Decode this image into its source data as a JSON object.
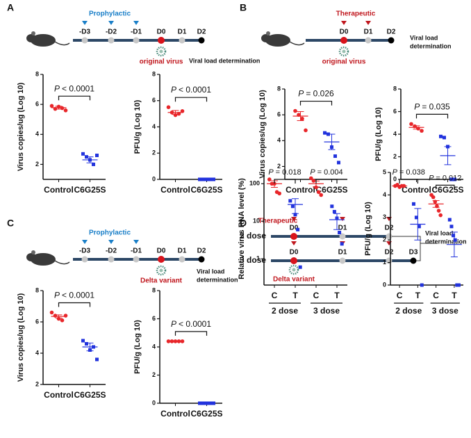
{
  "panel_labels": [
    "A",
    "B",
    "C",
    "D"
  ],
  "p_symbol": "P",
  "timelines": [
    {
      "phase": "Prophylactic",
      "days": [
        "-D3",
        "-D2",
        "-D1",
        "D0",
        "D1",
        "D2"
      ],
      "virus": "original virus",
      "readout": [
        "Viral load determination"
      ]
    },
    {
      "phase": "Therapeutic",
      "days": [
        "D0",
        "D1",
        "D2"
      ],
      "virus": "original virus",
      "readout": [
        "Viral load",
        "determination"
      ]
    },
    {
      "phase": "Prophylactic",
      "days": [
        "-D3",
        "-D2",
        "-D1",
        "D0",
        "D1",
        "D2"
      ],
      "virus": "Delta variant",
      "readout": [
        "Viral load",
        "determination"
      ]
    },
    {
      "phase": "Therapeutic",
      "rows": [
        {
          "name": "2 dose",
          "days": [
            "D0",
            "D1",
            "D2"
          ]
        },
        {
          "name": "3 dose",
          "days": [
            "D0",
            "D1",
            "D2",
            "D3"
          ]
        }
      ],
      "virus": "Delta variant",
      "readout": [
        "Viral load",
        "determination"
      ]
    }
  ],
  "chart_data": [
    {
      "type": "dot",
      "ylabel": "Virus copies/ug (Log 10)",
      "categories": [
        "Control",
        "C6G25S"
      ],
      "colors": [
        "#e8262a",
        "#2233dd"
      ],
      "markers": [
        "circle",
        "square"
      ],
      "points": [
        [
          5.9,
          5.7,
          5.85,
          5.75,
          5.6
        ],
        [
          2.7,
          2.5,
          2.3,
          2.0,
          2.6
        ]
      ],
      "means": [
        5.78,
        2.3
      ],
      "errors": [
        0.1,
        0.2
      ],
      "ylim": [
        1,
        8
      ],
      "yticks": [
        2,
        4,
        6,
        8
      ],
      "comparisons": [
        {
          "pair": [
            0,
            1
          ],
          "text": "< 0.0001"
        }
      ]
    },
    {
      "type": "dot",
      "ylabel": "PFU/g (Log 10)",
      "categories": [
        "Control",
        "C6G25S"
      ],
      "colors": [
        "#e8262a",
        "#2233dd"
      ],
      "markers": [
        "circle",
        "square"
      ],
      "points": [
        [
          5.5,
          5.1,
          4.9,
          5.0,
          5.2
        ],
        [
          0,
          0,
          0,
          0,
          0
        ]
      ],
      "means": [
        5.1,
        0
      ],
      "errors": [
        0.15,
        0
      ],
      "ylim": [
        0,
        8
      ],
      "yticks": [
        0,
        2,
        4,
        6,
        8
      ],
      "comparisons": [
        {
          "pair": [
            0,
            1
          ],
          "text": "< 0.0001"
        }
      ]
    },
    {
      "type": "dot",
      "ylabel": "Virus copies/ug (Log 10)",
      "categories": [
        "Control",
        "C6G25S"
      ],
      "colors": [
        "#e8262a",
        "#2233dd"
      ],
      "markers": [
        "circle",
        "square"
      ],
      "points": [
        [
          6.3,
          6.0,
          5.7,
          4.8
        ],
        [
          4.6,
          4.5,
          3.5,
          2.8,
          2.3
        ]
      ],
      "means": [
        5.9,
        3.9
      ],
      "errors": [
        0.35,
        0.6
      ],
      "ylim": [
        1,
        8
      ],
      "yticks": [
        2,
        4,
        6,
        8
      ],
      "comparisons": [
        {
          "pair": [
            0,
            1
          ],
          "text": "= 0.026"
        }
      ]
    },
    {
      "type": "dot",
      "ylabel": "PFU/g (Log 10)",
      "categories": [
        "Control",
        "C6G25S"
      ],
      "colors": [
        "#e8262a",
        "#2233dd"
      ],
      "markers": [
        "circle",
        "square"
      ],
      "points": [
        [
          4.9,
          4.7,
          4.5,
          4.3
        ],
        [
          3.8,
          3.7,
          2.9,
          0,
          0
        ]
      ],
      "means": [
        4.6,
        2.1
      ],
      "errors": [
        0.15,
        0.8
      ],
      "ylim": [
        0,
        8
      ],
      "yticks": [
        0,
        2,
        4,
        6,
        8
      ],
      "comparisons": [
        {
          "pair": [
            0,
            1
          ],
          "text": "= 0.035"
        }
      ]
    },
    {
      "type": "dot",
      "ylabel": "Virus copies/ug (Log 10)",
      "categories": [
        "Control",
        "C6G25S"
      ],
      "colors": [
        "#e8262a",
        "#2233dd"
      ],
      "markers": [
        "circle",
        "square"
      ],
      "points": [
        [
          6.6,
          6.4,
          6.2,
          6.1,
          6.4
        ],
        [
          4.8,
          4.6,
          4.2,
          4.4,
          3.6
        ]
      ],
      "means": [
        6.35,
        4.4
      ],
      "errors": [
        0.1,
        0.25
      ],
      "ylim": [
        2,
        8
      ],
      "yticks": [
        2,
        4,
        6,
        8
      ],
      "comparisons": [
        {
          "pair": [
            0,
            1
          ],
          "text": "< 0.0001"
        }
      ]
    },
    {
      "type": "dot",
      "ylabel": "PFU/g (Log 10)",
      "categories": [
        "Control",
        "C6G25S"
      ],
      "colors": [
        "#e8262a",
        "#2233dd"
      ],
      "markers": [
        "circle",
        "square"
      ],
      "points": [
        [
          4.4,
          4.4,
          4.4,
          4.4,
          4.4
        ],
        [
          0,
          0,
          0,
          0,
          0
        ]
      ],
      "means": [
        4.4,
        0
      ],
      "errors": [
        0.02,
        0
      ],
      "ylim": [
        0,
        8
      ],
      "yticks": [
        0,
        2,
        4,
        6,
        8
      ],
      "comparisons": [
        {
          "pair": [
            0,
            1
          ],
          "text": "< 0.0001"
        }
      ]
    },
    {
      "type": "dot",
      "log": true,
      "ylabel": "Relative virus RNA level (%)",
      "categories": [
        "C",
        "T",
        "C",
        "T"
      ],
      "groups": [
        "2 dose",
        "3 dose"
      ],
      "colors": [
        "#e8262a",
        "#2233dd",
        "#e8262a",
        "#2233dd"
      ],
      "markers": [
        "circle",
        "square",
        "circle",
        "square"
      ],
      "points": [
        [
          130,
          100,
          100,
          60,
          55
        ],
        [
          35,
          25,
          15,
          6,
          0.6
        ],
        [
          140,
          120,
          80,
          60,
          50
        ],
        [
          25,
          18,
          12,
          5,
          2.5
        ]
      ],
      "means": [
        100,
        28,
        100,
        11
      ],
      "errors": [
        20,
        12,
        18,
        5
      ],
      "ylim": [
        0.2,
        200
      ],
      "yticks": [
        1,
        10,
        100
      ],
      "comparisons": [
        {
          "pair": [
            0,
            1
          ],
          "text": "= 0.018"
        },
        {
          "pair": [
            2,
            3
          ],
          "text": "= 0.004"
        }
      ]
    },
    {
      "type": "dot",
      "ylabel": "PFU/g (Log 10)",
      "categories": [
        "C",
        "T",
        "C",
        "T"
      ],
      "groups": [
        "2 dose",
        "3 dose"
      ],
      "colors": [
        "#e8262a",
        "#2233dd",
        "#e8262a",
        "#2233dd"
      ],
      "markers": [
        "circle",
        "square",
        "circle",
        "square"
      ],
      "points": [
        [
          4.4,
          4.45,
          4.35,
          4.4,
          4.4
        ],
        [
          3.6,
          3.0,
          2.6,
          0
        ],
        [
          4.0,
          3.9,
          3.7,
          3.5,
          3.3,
          3.1
        ],
        [
          2.9,
          2.6,
          2.2,
          2.0,
          0,
          0
        ]
      ],
      "means": [
        4.4,
        2.7,
        3.6,
        1.8
      ],
      "errors": [
        0.03,
        0.7,
        0.15,
        0.55
      ],
      "ylim": [
        0,
        5
      ],
      "yticks": [
        0,
        1,
        2,
        3,
        4,
        5
      ],
      "comparisons": [
        {
          "pair": [
            0,
            1
          ],
          "text": "= 0.038"
        },
        {
          "pair": [
            2,
            3
          ],
          "text": "= 0.012"
        }
      ]
    }
  ]
}
